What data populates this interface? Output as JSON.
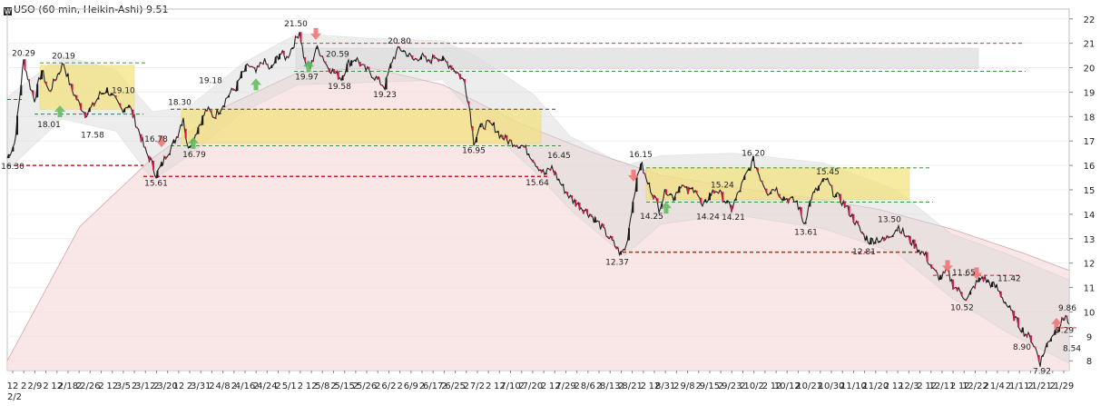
{
  "header": {
    "logo_glyph": "W",
    "title": "USO (60 min, Heikin-Ashi) 9.51"
  },
  "chart_data": {
    "type": "candlestick",
    "title": "USO (60 min, Heikin-Ashi) 9.51",
    "symbol": "USO",
    "interval": "60 min",
    "chart_style": "Heikin-Ashi",
    "last_price": 9.51,
    "ylim": [
      7.6,
      22.4
    ],
    "y_ticks": [
      8,
      9,
      10,
      11,
      12,
      13,
      14,
      15,
      16,
      17,
      18,
      19,
      20,
      21,
      22
    ],
    "x_ticks": [
      "12",
      "2",
      "2/9",
      "2",
      "12",
      "2/18",
      "2",
      "2/26",
      "2",
      "12",
      "3/5",
      "2",
      "3/12",
      "2",
      "3/20",
      "12",
      "2",
      "3/31",
      "2",
      "4/8",
      "2",
      "4/16",
      "2",
      "4/24",
      "2",
      "5/1",
      "2",
      "12",
      "5/8",
      "2",
      "5/15",
      "2",
      "5/26",
      "2",
      "6/2",
      "2",
      "6/9",
      "2",
      "6/17",
      "2",
      "6/25",
      "2",
      "7/2",
      "2",
      "12",
      "7/10",
      "2",
      "7/20",
      "2",
      "12",
      "7/29",
      "2",
      "8/6",
      "2",
      "8/13",
      "2",
      "8/21",
      "2",
      "12",
      "8/31",
      "2",
      "9/8",
      "2",
      "9/15",
      "2",
      "9/23",
      "2",
      "10/2",
      "2",
      "12",
      "10/12",
      "2",
      "10/21",
      "2",
      "10/30",
      "2",
      "11/10",
      "2",
      "11/20",
      "2",
      "12",
      "12/3",
      "2",
      "12",
      "12/11",
      "2",
      "12",
      "12/22",
      "2",
      "1/4",
      "2",
      "1/11",
      "2",
      "1/21",
      "2",
      "1/29"
    ],
    "first_x_label": "2/2",
    "price_path": [
      [
        0,
        16.3
      ],
      [
        8,
        16.9
      ],
      [
        14,
        18.9
      ],
      [
        18,
        20.29
      ],
      [
        24,
        19.4
      ],
      [
        30,
        18.7
      ],
      [
        38,
        19.9
      ],
      [
        46,
        19.0
      ],
      [
        54,
        19.6
      ],
      [
        62,
        20.19
      ],
      [
        70,
        19.2
      ],
      [
        78,
        18.6
      ],
      [
        86,
        18.1
      ],
      [
        94,
        18.4
      ],
      [
        102,
        18.9
      ],
      [
        110,
        19.1
      ],
      [
        118,
        18.7
      ],
      [
        126,
        18.3
      ],
      [
        134,
        18.5
      ],
      [
        140,
        17.9
      ],
      [
        146,
        17.3
      ],
      [
        152,
        16.6
      ],
      [
        158,
        16.2
      ],
      [
        164,
        15.61
      ],
      [
        170,
        16.0
      ],
      [
        176,
        16.5
      ],
      [
        182,
        16.8
      ],
      [
        188,
        17.3
      ],
      [
        194,
        18.0
      ],
      [
        198,
        16.79
      ],
      [
        204,
        17.0
      ],
      [
        212,
        17.7
      ],
      [
        220,
        18.3
      ],
      [
        228,
        18.0
      ],
      [
        236,
        18.4
      ],
      [
        244,
        18.9
      ],
      [
        252,
        19.18
      ],
      [
        258,
        19.7
      ],
      [
        266,
        20.1
      ],
      [
        274,
        19.8
      ],
      [
        282,
        20.3
      ],
      [
        290,
        19.9
      ],
      [
        300,
        20.6
      ],
      [
        308,
        20.4
      ],
      [
        316,
        21.0
      ],
      [
        322,
        21.5
      ],
      [
        328,
        20.2
      ],
      [
        334,
        19.97
      ],
      [
        340,
        20.8
      ],
      [
        346,
        20.59
      ],
      [
        352,
        20.1
      ],
      [
        360,
        19.8
      ],
      [
        368,
        19.58
      ],
      [
        376,
        20.2
      ],
      [
        384,
        20.4
      ],
      [
        392,
        20.0
      ],
      [
        400,
        19.8
      ],
      [
        408,
        19.5
      ],
      [
        416,
        19.23
      ],
      [
        424,
        20.3
      ],
      [
        432,
        20.8
      ],
      [
        440,
        20.6
      ],
      [
        448,
        20.3
      ],
      [
        456,
        20.5
      ],
      [
        464,
        20.2
      ],
      [
        472,
        20.5
      ],
      [
        480,
        20.3
      ],
      [
        488,
        20.1
      ],
      [
        496,
        19.8
      ],
      [
        504,
        19.4
      ],
      [
        510,
        18.2
      ],
      [
        514,
        16.95
      ],
      [
        520,
        17.5
      ],
      [
        528,
        17.7
      ],
      [
        536,
        17.6
      ],
      [
        544,
        17.2
      ],
      [
        552,
        17.0
      ],
      [
        560,
        16.9
      ],
      [
        568,
        16.8
      ],
      [
        576,
        16.45
      ],
      [
        584,
        16.0
      ],
      [
        592,
        15.64
      ],
      [
        600,
        15.9
      ],
      [
        606,
        15.5
      ],
      [
        614,
        15.0
      ],
      [
        622,
        14.6
      ],
      [
        632,
        14.3
      ],
      [
        642,
        14.0
      ],
      [
        652,
        13.6
      ],
      [
        660,
        13.2
      ],
      [
        668,
        12.8
      ],
      [
        676,
        12.37
      ],
      [
        682,
        12.7
      ],
      [
        688,
        14.2
      ],
      [
        692,
        15.1
      ],
      [
        698,
        16.15
      ],
      [
        704,
        15.4
      ],
      [
        712,
        14.8
      ],
      [
        718,
        14.25
      ],
      [
        726,
        15.0
      ],
      [
        734,
        14.7
      ],
      [
        742,
        15.24
      ],
      [
        750,
        14.9
      ],
      [
        758,
        15.1
      ],
      [
        766,
        14.24
      ],
      [
        774,
        14.8
      ],
      [
        782,
        15.0
      ],
      [
        790,
        14.6
      ],
      [
        798,
        14.21
      ],
      [
        806,
        14.9
      ],
      [
        814,
        15.6
      ],
      [
        822,
        16.2
      ],
      [
        830,
        15.5
      ],
      [
        838,
        14.9
      ],
      [
        846,
        15.1
      ],
      [
        854,
        14.7
      ],
      [
        862,
        14.6
      ],
      [
        870,
        14.5
      ],
      [
        878,
        13.61
      ],
      [
        886,
        14.7
      ],
      [
        894,
        15.1
      ],
      [
        902,
        15.45
      ],
      [
        910,
        14.9
      ],
      [
        918,
        14.6
      ],
      [
        926,
        14.2
      ],
      [
        934,
        13.7
      ],
      [
        942,
        13.2
      ],
      [
        950,
        12.9
      ],
      [
        958,
        13.0
      ],
      [
        966,
        12.9
      ],
      [
        974,
        13.2
      ],
      [
        982,
        13.5
      ],
      [
        990,
        13.1
      ],
      [
        998,
        12.8
      ],
      [
        1006,
        12.5
      ],
      [
        1012,
        12.3
      ],
      [
        1020,
        11.7
      ],
      [
        1028,
        11.4
      ],
      [
        1036,
        11.65
      ],
      [
        1042,
        11.1
      ],
      [
        1050,
        10.8
      ],
      [
        1058,
        10.52
      ],
      [
        1066,
        11.1
      ],
      [
        1074,
        11.42
      ],
      [
        1082,
        11.2
      ],
      [
        1090,
        11.0
      ],
      [
        1098,
        10.5
      ],
      [
        1106,
        10.0
      ],
      [
        1114,
        9.5
      ],
      [
        1122,
        9.1
      ],
      [
        1128,
        8.9
      ],
      [
        1134,
        8.4
      ],
      [
        1138,
        7.92
      ],
      [
        1144,
        8.54
      ],
      [
        1150,
        9.0
      ],
      [
        1156,
        9.29
      ],
      [
        1162,
        9.6
      ],
      [
        1166,
        9.86
      ],
      [
        1170,
        9.51
      ]
    ],
    "price_labels": [
      {
        "t": "16.30",
        "x": 0,
        "y": 16.3,
        "pos": "below"
      },
      {
        "t": "20.29",
        "x": 18,
        "y": 20.29,
        "pos": "above"
      },
      {
        "t": "20.19",
        "x": 62,
        "y": 20.19,
        "pos": "above"
      },
      {
        "t": "19.10",
        "x": 110,
        "y": 19.1,
        "pos": "right"
      },
      {
        "t": "18.01",
        "x": 46,
        "y": 18.01,
        "pos": "below"
      },
      {
        "t": "17.58",
        "x": 94,
        "y": 17.58,
        "pos": "below"
      },
      {
        "t": "16.78",
        "x": 164,
        "y": 16.78,
        "pos": "above"
      },
      {
        "t": "15.61",
        "x": 164,
        "y": 15.61,
        "pos": "below"
      },
      {
        "t": "18.30",
        "x": 190,
        "y": 18.3,
        "pos": "above"
      },
      {
        "t": "16.79",
        "x": 206,
        "y": 16.79,
        "pos": "below"
      },
      {
        "t": "19.18",
        "x": 224,
        "y": 19.18,
        "pos": "above"
      },
      {
        "t": "21.50",
        "x": 318,
        "y": 21.5,
        "pos": "above"
      },
      {
        "t": "20.59",
        "x": 346,
        "y": 20.59,
        "pos": "right"
      },
      {
        "t": "19.97",
        "x": 330,
        "y": 19.97,
        "pos": "below"
      },
      {
        "t": "19.58",
        "x": 366,
        "y": 19.58,
        "pos": "below"
      },
      {
        "t": "20.80",
        "x": 432,
        "y": 20.8,
        "pos": "above"
      },
      {
        "t": "19.23",
        "x": 416,
        "y": 19.23,
        "pos": "below"
      },
      {
        "t": "16.95",
        "x": 514,
        "y": 16.95,
        "pos": "below"
      },
      {
        "t": "16.45",
        "x": 590,
        "y": 16.45,
        "pos": "right"
      },
      {
        "t": "15.64",
        "x": 584,
        "y": 15.64,
        "pos": "below"
      },
      {
        "t": "12.37",
        "x": 672,
        "y": 12.37,
        "pos": "below"
      },
      {
        "t": "16.15",
        "x": 698,
        "y": 16.15,
        "pos": "above"
      },
      {
        "t": "15.24",
        "x": 770,
        "y": 15.24,
        "pos": "right"
      },
      {
        "t": "14.25",
        "x": 710,
        "y": 14.25,
        "pos": "below"
      },
      {
        "t": "14.24",
        "x": 772,
        "y": 14.24,
        "pos": "below"
      },
      {
        "t": "14.21",
        "x": 800,
        "y": 14.21,
        "pos": "below"
      },
      {
        "t": "16.20",
        "x": 822,
        "y": 16.2,
        "pos": "above"
      },
      {
        "t": "13.61",
        "x": 880,
        "y": 13.61,
        "pos": "below"
      },
      {
        "t": "15.45",
        "x": 904,
        "y": 15.45,
        "pos": "above"
      },
      {
        "t": "13.50",
        "x": 972,
        "y": 13.5,
        "pos": "above"
      },
      {
        "t": "12.81",
        "x": 944,
        "y": 12.81,
        "pos": "below"
      },
      {
        "t": "11.65",
        "x": 1036,
        "y": 11.65,
        "pos": "right"
      },
      {
        "t": "11.42",
        "x": 1086,
        "y": 11.42,
        "pos": "right"
      },
      {
        "t": "10.52",
        "x": 1052,
        "y": 10.52,
        "pos": "below"
      },
      {
        "t": "8.90",
        "x": 1118,
        "y": 8.9,
        "pos": "below"
      },
      {
        "t": "7.92",
        "x": 1140,
        "y": 7.92,
        "pos": "below"
      },
      {
        "t": "8.54",
        "x": 1158,
        "y": 8.54,
        "pos": "right"
      },
      {
        "t": "9.29",
        "x": 1150,
        "y": 9.29,
        "pos": "right"
      },
      {
        "t": "9.86",
        "x": 1168,
        "y": 9.86,
        "pos": "above"
      }
    ],
    "levels": [
      {
        "price": 21.0,
        "x1": 316,
        "x2": 1118,
        "color": "#cc2222"
      },
      {
        "price": 20.2,
        "x1": 36,
        "x2": 152,
        "color": "#228822"
      },
      {
        "price": 19.85,
        "x1": 316,
        "x2": 1122,
        "color": "#228822"
      },
      {
        "price": 18.3,
        "x1": 180,
        "x2": 604,
        "color": "#444444"
      },
      {
        "price": 16.8,
        "x1": 180,
        "x2": 610,
        "color": "#228822"
      },
      {
        "price": 15.55,
        "x1": 150,
        "x2": 598,
        "color": "#cc2222"
      },
      {
        "price": 18.1,
        "x1": 30,
        "x2": 150,
        "color": "#228822"
      },
      {
        "price": 16.0,
        "x1": 0,
        "x2": 150,
        "color": "#cc2222"
      },
      {
        "price": 18.7,
        "x1": 0,
        "x2": 16,
        "color": "#cc2222"
      },
      {
        "price": 15.9,
        "x1": 704,
        "x2": 1018,
        "color": "#228822"
      },
      {
        "price": 14.5,
        "x1": 704,
        "x2": 1020,
        "color": "#228822"
      },
      {
        "price": 12.45,
        "x1": 678,
        "x2": 1008,
        "color": "#cc2222"
      },
      {
        "price": 11.5,
        "x1": 1020,
        "x2": 1118,
        "color": "#cc2222"
      },
      {
        "price": 9.35,
        "x1": 1160,
        "x2": 1180,
        "color": "#cc2222"
      }
    ],
    "zones": [
      {
        "x1": 36,
        "x2": 140,
        "y1": 20.1,
        "y2": 18.3,
        "color": "#f4e27a"
      },
      {
        "x1": 192,
        "x2": 588,
        "y1": 18.3,
        "y2": 16.9,
        "color": "#f4e27a"
      },
      {
        "x1": 704,
        "x2": 994,
        "y1": 15.9,
        "y2": 14.6,
        "color": "#f4e27a"
      },
      {
        "x1": 318,
        "x2": 1070,
        "y1": 20.8,
        "y2": 19.95,
        "color": "#dcdcdc"
      }
    ],
    "arrows": [
      {
        "x": 58,
        "y": 18.2,
        "dir": "up",
        "color": "#66bb66"
      },
      {
        "x": 170,
        "y": 17.0,
        "dir": "down",
        "color": "#ee7777"
      },
      {
        "x": 205,
        "y": 16.9,
        "dir": "up",
        "color": "#66bb66"
      },
      {
        "x": 274,
        "y": 19.3,
        "dir": "up",
        "color": "#66bb66"
      },
      {
        "x": 332,
        "y": 20.05,
        "dir": "up",
        "color": "#66bb66"
      },
      {
        "x": 340,
        "y": 21.4,
        "dir": "down",
        "color": "#ee7777"
      },
      {
        "x": 690,
        "y": 15.6,
        "dir": "down",
        "color": "#ee7777"
      },
      {
        "x": 726,
        "y": 14.25,
        "dir": "up",
        "color": "#66bb66"
      },
      {
        "x": 1036,
        "y": 11.9,
        "dir": "down",
        "color": "#ee7777"
      },
      {
        "x": 1068,
        "y": 11.6,
        "dir": "down",
        "color": "#ee7777"
      },
      {
        "x": 1156,
        "y": 9.5,
        "dir": "up",
        "color": "#ee7777"
      }
    ],
    "band_upper": [
      [
        0,
        18.8
      ],
      [
        60,
        20.5
      ],
      [
        120,
        19.9
      ],
      [
        160,
        18.2
      ],
      [
        200,
        18.4
      ],
      [
        260,
        20.2
      ],
      [
        320,
        21.4
      ],
      [
        400,
        21.2
      ],
      [
        480,
        21.1
      ],
      [
        520,
        20.4
      ],
      [
        580,
        18.9
      ],
      [
        620,
        17.2
      ],
      [
        680,
        16.0
      ],
      [
        720,
        16.4
      ],
      [
        800,
        16.5
      ],
      [
        900,
        16.1
      ],
      [
        980,
        15.0
      ],
      [
        1040,
        13.2
      ],
      [
        1100,
        12.4
      ],
      [
        1170,
        11.3
      ]
    ],
    "band_lower": [
      [
        0,
        15.8
      ],
      [
        60,
        17.9
      ],
      [
        120,
        17.4
      ],
      [
        160,
        15.4
      ],
      [
        200,
        16.4
      ],
      [
        260,
        18.2
      ],
      [
        320,
        19.3
      ],
      [
        400,
        19.4
      ],
      [
        480,
        19.5
      ],
      [
        520,
        17.8
      ],
      [
        580,
        15.8
      ],
      [
        620,
        14.2
      ],
      [
        680,
        12.3
      ],
      [
        720,
        13.6
      ],
      [
        800,
        14.0
      ],
      [
        900,
        13.4
      ],
      [
        980,
        12.4
      ],
      [
        1040,
        10.6
      ],
      [
        1100,
        9.2
      ],
      [
        1170,
        7.9
      ]
    ],
    "ma_line": [
      [
        0,
        8.0
      ],
      [
        80,
        13.5
      ],
      [
        160,
        16.3
      ],
      [
        240,
        18.4
      ],
      [
        320,
        19.8
      ],
      [
        400,
        20.0
      ],
      [
        480,
        19.3
      ],
      [
        560,
        17.8
      ],
      [
        640,
        16.6
      ],
      [
        720,
        15.6
      ],
      [
        800,
        15.1
      ],
      [
        880,
        14.7
      ],
      [
        960,
        14.2
      ],
      [
        1040,
        13.4
      ],
      [
        1120,
        12.4
      ],
      [
        1170,
        11.7
      ]
    ]
  }
}
